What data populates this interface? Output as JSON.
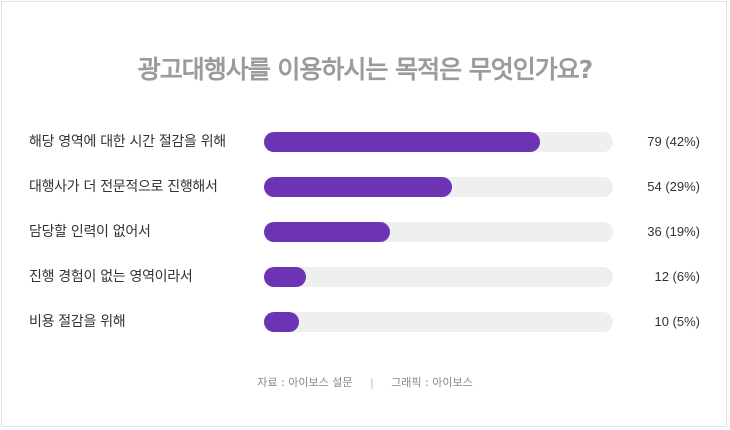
{
  "chart_data": {
    "type": "bar",
    "orientation": "horizontal",
    "title": "광고대행사를 이용하시는 목적은 무엇인가요?",
    "categories": [
      "해당 영역에 대한 시간 절감을 위해",
      "대행사가 더 전문적으로 진행해서",
      "담당할 인력이 없어서",
      "진행 경험이 없는 영역이라서",
      "비용 절감을 위해"
    ],
    "values": [
      79,
      54,
      36,
      12,
      10
    ],
    "percentages": [
      42,
      29,
      19,
      6,
      5
    ],
    "value_labels": [
      "79 (42%)",
      "54 (29%)",
      "36 (19%)",
      "12 (6%)",
      "10 (5%)"
    ],
    "xlim": [
      0,
      100
    ],
    "grid": false,
    "colors": {
      "bar": "#6c33b5",
      "track": "#efefef",
      "title": "#9b9b9b"
    }
  },
  "footer": {
    "source": "자료 : 아이보스 설문",
    "separator": "|",
    "graphic": "그래픽 : 아이보스"
  }
}
